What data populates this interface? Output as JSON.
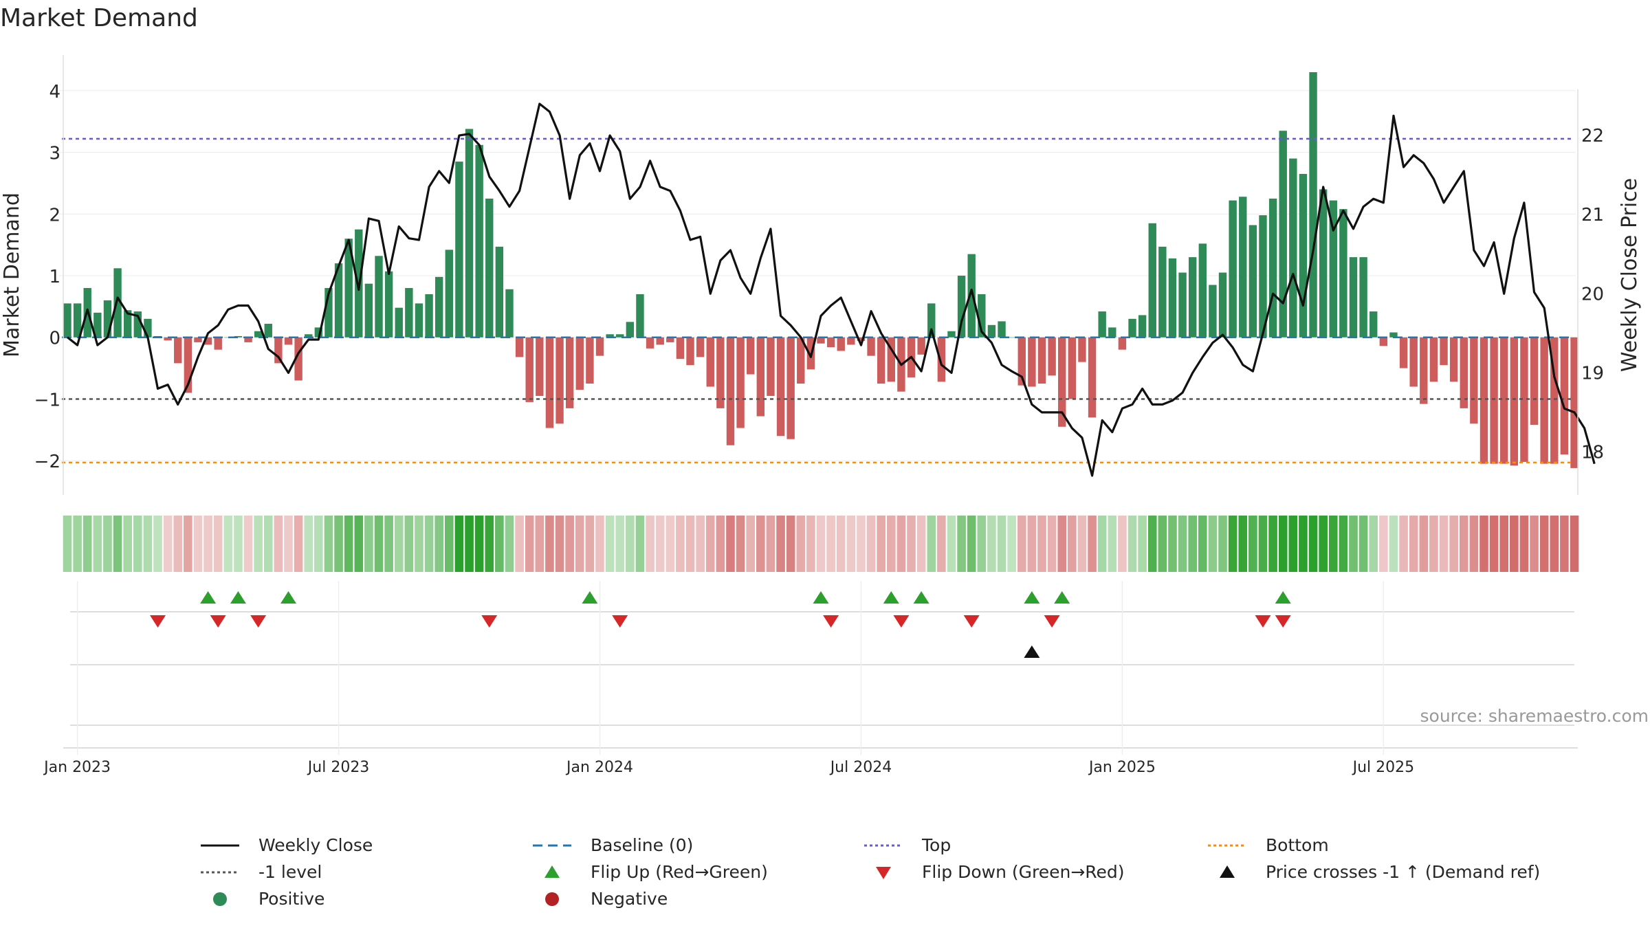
{
  "title": "Market Demand",
  "source": "source: sharemaestro.com",
  "colors": {
    "positive": "#2e8b57",
    "negative": "#cd5c5c",
    "line": "#111111",
    "baseline": "#1f77b4",
    "top": "#6a5acd",
    "bottom": "#ff8c00",
    "minus1": "#555555",
    "flipUp": "#2ca02c",
    "flipDown": "#d62728"
  },
  "chart_data": {
    "type": "bar",
    "title": "Market Demand",
    "ylabel": "Market Demand",
    "y2label": "Weekly Close Price",
    "ylim": [
      -2.5,
      4.3
    ],
    "y2lim": [
      17.5,
      22.8
    ],
    "yticks": [
      "4",
      "3",
      "2",
      "1",
      "0",
      "−1",
      "−2"
    ],
    "y2ticks": [
      "22",
      "21",
      "20",
      "19",
      "18"
    ],
    "xticks": [
      "Jan 2023",
      "Jul 2023",
      "Jan 2024",
      "Jul 2024",
      "Jan 2025",
      "Jul 2025"
    ],
    "xtick_weeks": [
      1,
      27,
      53,
      79,
      105,
      131
    ],
    "levels": {
      "baseline": 0,
      "top": 3.22,
      "bottom": -2.03,
      "minus1": -1
    },
    "demand": [
      0.55,
      0.55,
      0.8,
      0.4,
      0.6,
      1.12,
      0.44,
      0.42,
      0.3,
      0.02,
      -0.05,
      -0.42,
      -0.9,
      -0.08,
      -0.12,
      -0.2,
      0.0,
      0.02,
      -0.08,
      0.1,
      0.22,
      -0.42,
      -0.12,
      -0.7,
      0.05,
      0.16,
      0.8,
      1.2,
      1.6,
      1.75,
      0.87,
      1.32,
      1.07,
      0.48,
      0.8,
      0.55,
      0.7,
      0.98,
      1.42,
      2.85,
      3.38,
      3.12,
      2.25,
      1.47,
      0.78,
      -0.32,
      -1.05,
      -0.95,
      -1.47,
      -1.4,
      -1.15,
      -0.85,
      -0.75,
      -0.3,
      0.05,
      0.05,
      0.25,
      0.7,
      -0.18,
      -0.12,
      -0.08,
      -0.35,
      -0.45,
      -0.32,
      -0.8,
      -1.15,
      -1.75,
      -1.47,
      -0.6,
      -1.28,
      -0.95,
      -1.6,
      -1.65,
      -0.75,
      -0.52,
      -0.1,
      -0.16,
      -0.22,
      -0.12,
      -0.06,
      -0.3,
      -0.75,
      -0.72,
      -0.88,
      -0.65,
      -0.28,
      0.55,
      -0.72,
      0.1,
      1.0,
      1.35,
      0.7,
      0.2,
      0.26,
      0.0,
      -0.78,
      -0.8,
      -0.75,
      -0.62,
      -1.45,
      -1.0,
      -0.4,
      -1.3,
      0.42,
      0.16,
      -0.2,
      0.3,
      0.36,
      1.85,
      1.47,
      1.28,
      1.05,
      1.3,
      1.52,
      0.85,
      1.05,
      2.22,
      2.28,
      1.82,
      1.98,
      2.25,
      3.35,
      2.9,
      2.65,
      4.3,
      2.4,
      2.22,
      2.08,
      1.3,
      1.3,
      0.42,
      -0.14,
      0.08,
      -0.5,
      -0.8,
      -1.08,
      -0.72,
      -0.45,
      -0.72,
      -1.15,
      -1.4,
      -2.05,
      -2.05,
      -2.05,
      -2.08,
      -2.02,
      -1.42,
      -2.05,
      -2.05,
      -1.9,
      -2.12
    ],
    "close": [
      19.45,
      19.35,
      19.8,
      19.35,
      19.45,
      19.95,
      19.75,
      19.72,
      19.45,
      18.8,
      18.85,
      18.6,
      18.85,
      19.2,
      19.5,
      19.6,
      19.8,
      19.85,
      19.85,
      19.65,
      19.3,
      19.2,
      19.0,
      19.25,
      19.42,
      19.42,
      20.0,
      20.35,
      20.68,
      20.05,
      20.95,
      20.92,
      20.25,
      20.85,
      20.7,
      20.68,
      21.35,
      21.55,
      21.4,
      22.0,
      22.02,
      21.88,
      21.48,
      21.3,
      21.1,
      21.3,
      21.85,
      22.4,
      22.3,
      22.0,
      21.2,
      21.75,
      21.9,
      21.55,
      22.0,
      21.8,
      21.2,
      21.35,
      21.68,
      21.35,
      21.3,
      21.05,
      20.68,
      20.72,
      20.0,
      20.42,
      20.55,
      20.2,
      20.0,
      20.45,
      20.82,
      19.72,
      19.6,
      19.45,
      19.2,
      19.72,
      19.85,
      19.95,
      19.65,
      19.35,
      19.78,
      19.5,
      19.3,
      19.1,
      19.2,
      19.02,
      19.55,
      19.1,
      19.0,
      19.65,
      20.05,
      19.52,
      19.38,
      19.1,
      19.02,
      18.95,
      18.6,
      18.5,
      18.5,
      18.5,
      18.3,
      18.18,
      17.7,
      18.4,
      18.25,
      18.55,
      18.6,
      18.8,
      18.6,
      18.6,
      18.65,
      18.75,
      19.0,
      19.2,
      19.38,
      19.48,
      19.32,
      19.1,
      19.02,
      19.5,
      20.0,
      19.88,
      20.25,
      19.85,
      20.55,
      21.35,
      20.8,
      21.05,
      20.82,
      21.1,
      21.2,
      21.15,
      22.25,
      21.6,
      21.75,
      21.65,
      21.45,
      21.15,
      21.35,
      21.55,
      20.55,
      20.35,
      20.65,
      20.0,
      20.7,
      21.15,
      20.02,
      19.82,
      18.95,
      18.55,
      18.5,
      18.3,
      17.85
    ]
  },
  "signals": {
    "flip_up_weeks": [
      14,
      17,
      22,
      52,
      75,
      82,
      85,
      96,
      99,
      121
    ],
    "flip_down_weeks": [
      9,
      15,
      19,
      42,
      55,
      76,
      83,
      90,
      98,
      119,
      121
    ],
    "price_cross_weeks": [
      96
    ]
  },
  "legend": [
    {
      "label": "Weekly Close",
      "kind": "line",
      "color": "#111111",
      "dash": ""
    },
    {
      "label": "Baseline (0)",
      "kind": "line",
      "color": "#1f77b4",
      "dash": "14,8"
    },
    {
      "label": "Top",
      "kind": "line",
      "color": "#6a5acd",
      "dash": "4,4"
    },
    {
      "label": "Bottom",
      "kind": "line",
      "color": "#ff8c00",
      "dash": "4,4"
    },
    {
      "label": "-1 level",
      "kind": "line",
      "color": "#555555",
      "dash": "4,4"
    },
    {
      "label": "Flip Up (Red→Green)",
      "kind": "tri-up",
      "color": "#2ca02c",
      "dash": ""
    },
    {
      "label": "Flip Down (Green→Red)",
      "kind": "tri-down",
      "color": "#d62728",
      "dash": ""
    },
    {
      "label": "Price crosses -1 ↑ (Demand ref)",
      "kind": "tri-up",
      "color": "#111111",
      "dash": ""
    },
    {
      "label": "Positive",
      "kind": "dot",
      "color": "#2e8b57",
      "dash": ""
    },
    {
      "label": "Negative",
      "kind": "dot",
      "color": "#b22222",
      "dash": ""
    }
  ]
}
